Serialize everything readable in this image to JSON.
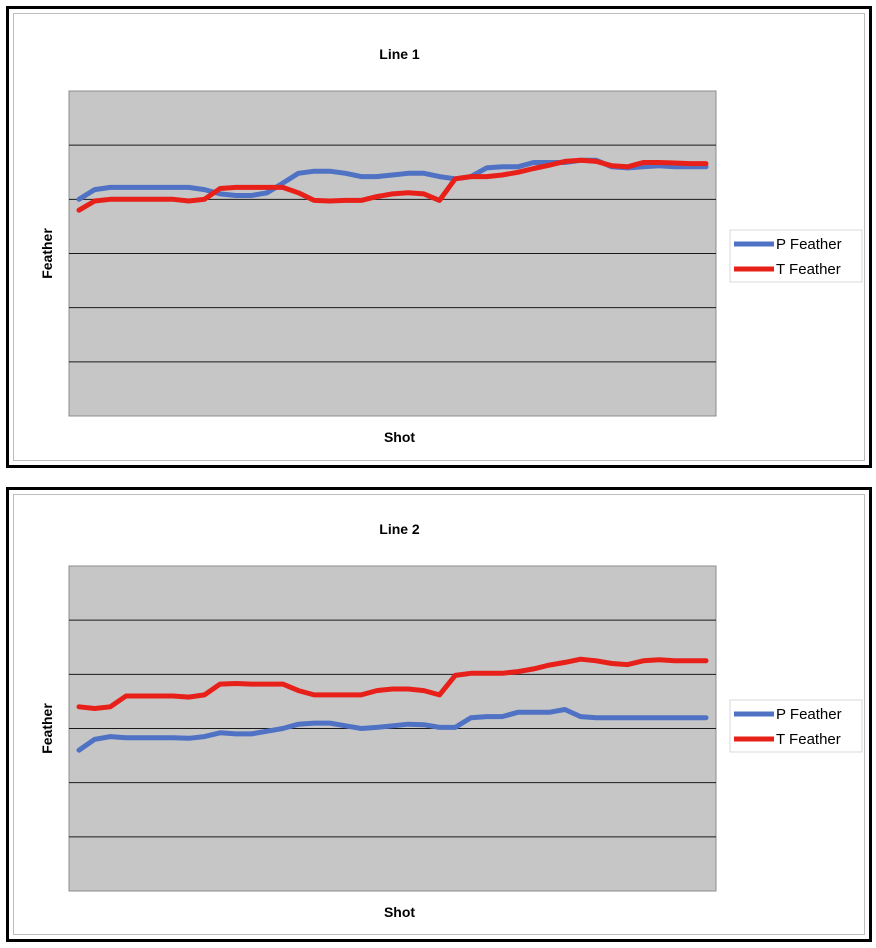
{
  "chart_data": [
    {
      "type": "line",
      "title": "Line 1",
      "xlabel": "Shot",
      "ylabel": "Feather",
      "ylim": [
        0,
        6
      ],
      "xlim": [
        0,
        40
      ],
      "grid": true,
      "legend_position": "right",
      "x": [
        0,
        1,
        2,
        3,
        4,
        5,
        6,
        7,
        8,
        9,
        10,
        11,
        12,
        13,
        14,
        15,
        16,
        17,
        18,
        19,
        20,
        21,
        22,
        23,
        24,
        25,
        26,
        27,
        28,
        29,
        30,
        31,
        32,
        33,
        34,
        35,
        36,
        37,
        38,
        39,
        40
      ],
      "series": [
        {
          "name": "P Feather",
          "color": "#4f72c4",
          "values": [
            4.0,
            4.18,
            4.22,
            4.22,
            4.22,
            4.22,
            4.22,
            4.22,
            4.18,
            4.1,
            4.07,
            4.07,
            4.12,
            4.3,
            4.48,
            4.52,
            4.52,
            4.48,
            4.42,
            4.42,
            4.45,
            4.48,
            4.48,
            4.42,
            4.38,
            4.42,
            4.58,
            4.6,
            4.6,
            4.68,
            4.68,
            4.68,
            4.72,
            4.72,
            4.6,
            4.58,
            4.6,
            4.62,
            4.6,
            4.6,
            4.6
          ]
        },
        {
          "name": "T Feather",
          "color": "#e8201a",
          "values": [
            3.8,
            3.97,
            4.0,
            4.0,
            4.0,
            4.0,
            4.0,
            3.97,
            4.0,
            4.2,
            4.22,
            4.22,
            4.22,
            4.22,
            4.12,
            3.98,
            3.97,
            3.98,
            3.98,
            4.05,
            4.1,
            4.12,
            4.1,
            3.98,
            4.38,
            4.42,
            4.42,
            4.45,
            4.5,
            4.57,
            4.63,
            4.7,
            4.72,
            4.7,
            4.62,
            4.6,
            4.68,
            4.68,
            4.67,
            4.66,
            4.66
          ]
        }
      ]
    },
    {
      "type": "line",
      "title": "Line 2",
      "xlabel": "Shot",
      "ylabel": "Feather",
      "ylim": [
        0,
        6
      ],
      "xlim": [
        0,
        40
      ],
      "grid": true,
      "legend_position": "right",
      "x": [
        0,
        1,
        2,
        3,
        4,
        5,
        6,
        7,
        8,
        9,
        10,
        11,
        12,
        13,
        14,
        15,
        16,
        17,
        18,
        19,
        20,
        21,
        22,
        23,
        24,
        25,
        26,
        27,
        28,
        29,
        30,
        31,
        32,
        33,
        34,
        35,
        36,
        37,
        38,
        39,
        40
      ],
      "series": [
        {
          "name": "P Feather",
          "color": "#4f72c4",
          "values": [
            2.6,
            2.8,
            2.85,
            2.83,
            2.83,
            2.83,
            2.83,
            2.82,
            2.85,
            2.92,
            2.9,
            2.9,
            2.95,
            3.0,
            3.08,
            3.1,
            3.1,
            3.05,
            3.0,
            3.02,
            3.05,
            3.08,
            3.07,
            3.02,
            3.02,
            3.2,
            3.22,
            3.22,
            3.3,
            3.3,
            3.3,
            3.35,
            3.22,
            3.2,
            3.2,
            3.2,
            3.2,
            3.2,
            3.2,
            3.2,
            3.2
          ]
        },
        {
          "name": "T Feather",
          "color": "#e8201a",
          "values": [
            3.4,
            3.37,
            3.4,
            3.6,
            3.6,
            3.6,
            3.6,
            3.58,
            3.62,
            3.82,
            3.83,
            3.82,
            3.82,
            3.82,
            3.7,
            3.62,
            3.62,
            3.62,
            3.62,
            3.7,
            3.73,
            3.73,
            3.7,
            3.62,
            3.98,
            4.02,
            4.02,
            4.02,
            4.05,
            4.1,
            4.17,
            4.22,
            4.28,
            4.25,
            4.2,
            4.18,
            4.25,
            4.27,
            4.25,
            4.25,
            4.25
          ]
        }
      ]
    }
  ]
}
